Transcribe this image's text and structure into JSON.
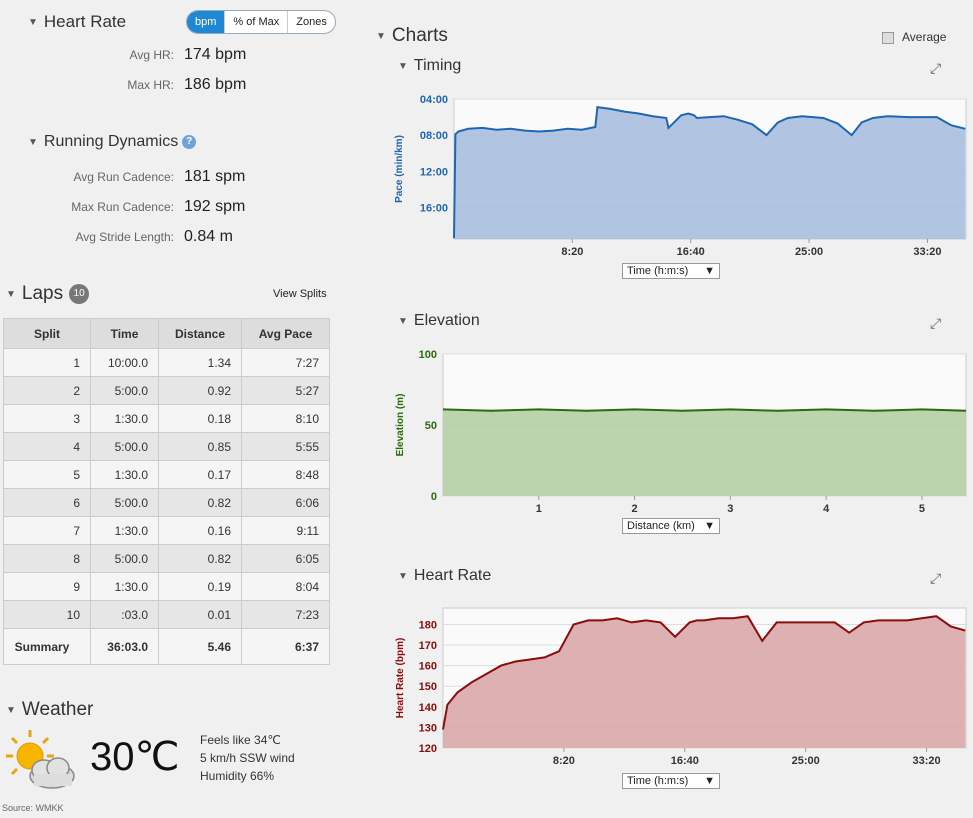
{
  "heart_rate": {
    "title": "Heart Rate",
    "segments": [
      "bpm",
      "% of Max",
      "Zones"
    ],
    "avg_label": "Avg HR:",
    "avg_value": "174 bpm",
    "max_label": "Max HR:",
    "max_value": "186 bpm"
  },
  "running_dynamics": {
    "title": "Running Dynamics",
    "help": "?",
    "cadence_label": "Avg Run Cadence:",
    "cadence_value": "181 spm",
    "max_cadence_label": "Max Run Cadence:",
    "max_cadence_value": "192 spm",
    "stride_label": "Avg Stride Length:",
    "stride_value": "0.84 m"
  },
  "laps": {
    "title": "Laps",
    "count": "10",
    "view_splits": "View Splits",
    "headers": [
      "Split",
      "Time",
      "Distance",
      "Avg Pace"
    ],
    "rows": [
      [
        "1",
        "10:00.0",
        "1.34",
        "7:27"
      ],
      [
        "2",
        "5:00.0",
        "0.92",
        "5:27"
      ],
      [
        "3",
        "1:30.0",
        "0.18",
        "8:10"
      ],
      [
        "4",
        "5:00.0",
        "0.85",
        "5:55"
      ],
      [
        "5",
        "1:30.0",
        "0.17",
        "8:48"
      ],
      [
        "6",
        "5:00.0",
        "0.82",
        "6:06"
      ],
      [
        "7",
        "1:30.0",
        "0.16",
        "9:11"
      ],
      [
        "8",
        "5:00.0",
        "0.82",
        "6:05"
      ],
      [
        "9",
        "1:30.0",
        "0.19",
        "8:04"
      ],
      [
        "10",
        ":03.0",
        "0.01",
        "7:23"
      ]
    ],
    "summary": [
      "Summary",
      "36:03.0",
      "5.46",
      "6:37"
    ]
  },
  "weather": {
    "title": "Weather",
    "temp": "30℃",
    "feels_like": "Feels like 34℃",
    "wind": "5 km/h SSW wind",
    "humidity": "Humidity 66%",
    "source": "Source: WMKK",
    "icon": "partly-cloudy-sun-icon"
  },
  "charts": {
    "title": "Charts",
    "average_label": "Average",
    "timing_title": "Timing",
    "elevation_title": "Elevation",
    "hr_title": "Heart Rate",
    "time_select": "Time (h:m:s)",
    "distance_select": "Distance (km)"
  },
  "colors": {
    "pace_line": "#1f66b0",
    "pace_fill": "#a9bfe0",
    "elev_line": "#2a6b0c",
    "elev_fill": "#b5cfa5",
    "hr_line": "#8a0c0c",
    "hr_fill": "#d9a9a9",
    "accent": "#1e88d4"
  },
  "chart_data": [
    {
      "type": "area",
      "title": "Timing",
      "ylabel": "Pace (min/km)",
      "xlabel": "Time (h:m:s)",
      "x_ticks": [
        "8:20",
        "16:40",
        "25:00",
        "33:20"
      ],
      "y_ticks": [
        "04:00",
        "08:00",
        "12:00",
        "16:00"
      ],
      "y_inverted": true,
      "xlim": [
        0,
        36.05
      ],
      "ylim": [
        4,
        19.5
      ],
      "x": [
        0,
        0.1,
        0.3,
        1,
        2,
        3,
        4,
        5,
        6,
        7,
        8,
        9,
        9.95,
        10.1,
        11,
        12,
        13,
        14,
        14.95,
        15.1,
        16,
        16.5,
        16.9,
        17.1,
        18,
        19,
        20,
        21,
        22,
        22.8,
        23.5,
        24.5,
        26,
        27,
        28,
        28.7,
        29.5,
        30.5,
        32,
        34,
        35,
        36
      ],
      "values": [
        19.4,
        7.9,
        7.6,
        7.3,
        7.2,
        7.4,
        7.3,
        7.5,
        7.6,
        7.5,
        7.3,
        7.4,
        7.1,
        4.9,
        5.1,
        5.4,
        5.6,
        5.9,
        6.1,
        7.2,
        5.8,
        5.6,
        5.8,
        6.1,
        6.0,
        5.9,
        6.3,
        6.8,
        8.0,
        6.6,
        6.1,
        5.9,
        6.1,
        6.7,
        8.0,
        6.6,
        6.1,
        5.9,
        6.0,
        6.0,
        6.9,
        7.3
      ]
    },
    {
      "type": "area",
      "title": "Elevation",
      "ylabel": "Elevation (m)",
      "xlabel": "Distance (km)",
      "x_ticks": [
        "1",
        "2",
        "3",
        "4",
        "5"
      ],
      "y_ticks": [
        "0",
        "50",
        "100"
      ],
      "xlim": [
        0,
        5.46
      ],
      "ylim": [
        0,
        100
      ],
      "x": [
        0,
        0.5,
        1,
        1.5,
        2,
        2.5,
        3,
        3.5,
        4,
        4.5,
        5,
        5.46
      ],
      "values": [
        61,
        60,
        61,
        60,
        61,
        60,
        61,
        60,
        61,
        60,
        61,
        60
      ]
    },
    {
      "type": "area",
      "title": "Heart Rate",
      "ylabel": "Heart Rate (bpm)",
      "xlabel": "Time (h:m:s)",
      "x_ticks": [
        "8:20",
        "16:40",
        "25:00",
        "33:20"
      ],
      "y_ticks": [
        "120",
        "130",
        "140",
        "150",
        "160",
        "170",
        "180"
      ],
      "xlim": [
        0,
        36.05
      ],
      "ylim": [
        120,
        188
      ],
      "x": [
        0,
        0.3,
        1,
        2,
        3,
        4,
        5,
        6,
        7,
        8,
        9,
        10,
        11,
        12,
        13,
        14,
        15,
        16,
        17,
        17.5,
        18,
        19,
        20,
        21,
        22,
        23,
        24,
        25,
        26,
        27,
        28,
        29,
        30,
        31,
        32,
        33,
        34,
        35,
        36
      ],
      "values": [
        129,
        141,
        147,
        152,
        156,
        160,
        162,
        163,
        164,
        167,
        180,
        182,
        182,
        183,
        181,
        182,
        181,
        174,
        181,
        182,
        182,
        183,
        183,
        184,
        172,
        181,
        181,
        181,
        181,
        181,
        176,
        181,
        182,
        182,
        182,
        183,
        184,
        179,
        177
      ]
    }
  ]
}
